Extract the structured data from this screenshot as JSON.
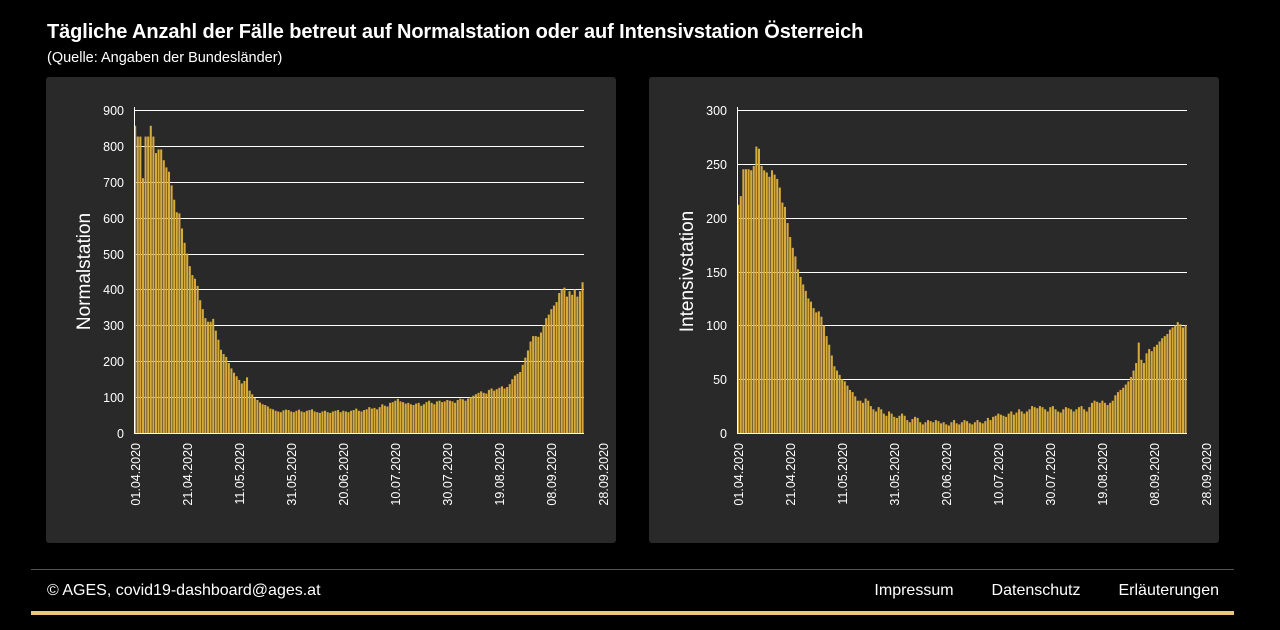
{
  "header": {
    "title": "Tägliche Anzahl der Fälle betreut auf Normalstation oder auf Intensivstation Österreich",
    "subtitle": "(Quelle: Angaben der Bundesländer)"
  },
  "footer": {
    "copyright": "© AGES, covid19-dashboard@ages.at",
    "links": [
      "Impressum",
      "Datenschutz",
      "Erläuterungen"
    ]
  },
  "colors": {
    "bar": "#d6ab3c",
    "panel": "#292929",
    "background": "#000000",
    "accent": "#e6c77b"
  },
  "chart_data": [
    {
      "type": "bar",
      "ylabel": "Normalstation",
      "xlabel": "",
      "ylim": [
        0,
        900
      ],
      "yticks": [
        0,
        100,
        200,
        300,
        400,
        500,
        600,
        700,
        800,
        900
      ],
      "grid": true,
      "x_start": "01.04.2020",
      "x_end": "08.10.2020",
      "xtick_labels": [
        "01.04.2020",
        "21.04.2020",
        "11.05.2020",
        "31.05.2020",
        "20.06.2020",
        "10.07.2020",
        "30.07.2020",
        "19.08.2020",
        "08.09.2020",
        "28.09.2020"
      ],
      "series": [
        {
          "values": [
            856,
            826,
            826,
            710,
            826,
            826,
            856,
            826,
            780,
            790,
            790,
            760,
            740,
            728,
            690,
            650,
            615,
            612,
            570,
            530,
            500,
            465,
            440,
            430,
            410,
            370,
            345,
            320,
            310,
            310,
            318,
            285,
            260,
            232,
            220,
            212,
            195,
            180,
            168,
            158,
            148,
            138,
            145,
            155,
            118,
            108,
            98,
            92,
            85,
            80,
            78,
            74,
            68,
            66,
            62,
            60,
            58,
            63,
            65,
            64,
            60,
            58,
            62,
            65,
            60,
            58,
            62,
            64,
            66,
            60,
            58,
            56,
            60,
            62,
            58,
            56,
            60,
            62,
            64,
            58,
            62,
            60,
            58,
            62,
            64,
            68,
            62,
            60,
            64,
            66,
            72,
            68,
            70,
            66,
            72,
            80,
            76,
            74,
            84,
            86,
            90,
            95,
            88,
            86,
            82,
            84,
            80,
            78,
            82,
            84,
            76,
            80,
            86,
            90,
            84,
            80,
            88,
            90,
            86,
            88,
            92,
            90,
            88,
            84,
            92,
            96,
            94,
            90,
            96,
            100,
            104,
            108,
            112,
            116,
            112,
            110,
            120,
            124,
            118,
            122,
            126,
            130,
            124,
            128,
            136,
            150,
            160,
            165,
            170,
            190,
            210,
            230,
            255,
            270,
            270,
            268,
            280,
            300,
            320,
            330,
            345,
            355,
            365,
            390,
            400,
            405,
            380,
            395,
            385,
            400,
            380,
            395,
            420
          ]
        }
      ]
    },
    {
      "type": "bar",
      "ylabel": "Intensivstation",
      "xlabel": "",
      "ylim": [
        0,
        300
      ],
      "yticks": [
        0,
        50,
        100,
        150,
        200,
        250,
        300
      ],
      "grid": true,
      "x_start": "01.04.2020",
      "x_end": "08.10.2020",
      "xtick_labels": [
        "01.04.2020",
        "21.04.2020",
        "11.05.2020",
        "31.05.2020",
        "20.06.2020",
        "10.07.2020",
        "30.07.2020",
        "19.08.2020",
        "08.09.2020",
        "28.09.2020"
      ],
      "series": [
        {
          "values": [
            212,
            220,
            245,
            245,
            245,
            244,
            248,
            266,
            264,
            248,
            244,
            242,
            238,
            244,
            240,
            236,
            228,
            214,
            210,
            195,
            182,
            172,
            164,
            152,
            145,
            138,
            132,
            125,
            122,
            116,
            112,
            113,
            108,
            100,
            90,
            82,
            72,
            62,
            58,
            54,
            50,
            48,
            44,
            40,
            38,
            34,
            30,
            30,
            28,
            32,
            30,
            25,
            22,
            20,
            24,
            22,
            18,
            16,
            20,
            18,
            15,
            14,
            16,
            18,
            16,
            12,
            10,
            13,
            15,
            14,
            10,
            8,
            10,
            12,
            11,
            10,
            12,
            11,
            9,
            10,
            8,
            7,
            10,
            12,
            9,
            8,
            10,
            12,
            11,
            9,
            8,
            10,
            12,
            10,
            9,
            11,
            14,
            12,
            15,
            16,
            18,
            17,
            16,
            15,
            18,
            20,
            17,
            19,
            22,
            20,
            18,
            20,
            22,
            25,
            24,
            23,
            25,
            24,
            22,
            20,
            24,
            25,
            22,
            20,
            19,
            22,
            24,
            23,
            22,
            20,
            22,
            24,
            25,
            22,
            20,
            24,
            28,
            30,
            29,
            28,
            30,
            28,
            26,
            28,
            30,
            35,
            38,
            40,
            42,
            45,
            48,
            52,
            58,
            65,
            84,
            68,
            65,
            74,
            78,
            76,
            80,
            82,
            85,
            88,
            90,
            92,
            96,
            98,
            100,
            103,
            101,
            98,
            100
          ]
        }
      ]
    }
  ]
}
